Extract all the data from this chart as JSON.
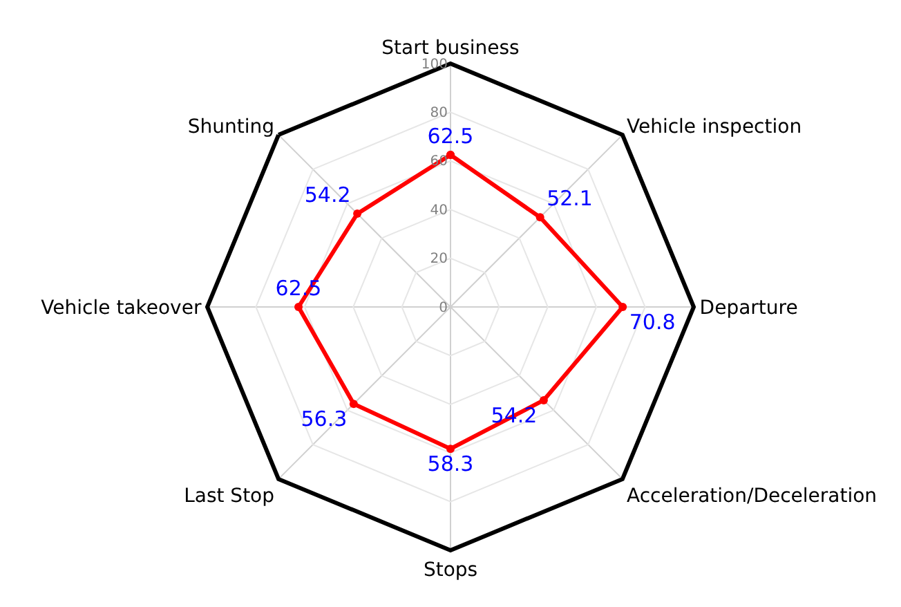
{
  "chart_data": {
    "type": "radar",
    "categories": [
      "Start business",
      "Vehicle inspection",
      "Departure",
      "Acceleration/Deceleration",
      "Stops",
      "Last Stop",
      "Vehicle takeover",
      "Shunting"
    ],
    "series": [
      {
        "color": "#ff0000",
        "values": [
          62.5,
          52.1,
          70.8,
          54.2,
          58.3,
          56.3,
          62.5,
          54.2
        ]
      }
    ],
    "ylim": [
      0,
      100
    ],
    "yticks": [
      0,
      20,
      40,
      60,
      80,
      100
    ],
    "grid": true,
    "data_labels": true,
    "marker": "circle",
    "line_style": "solid"
  }
}
